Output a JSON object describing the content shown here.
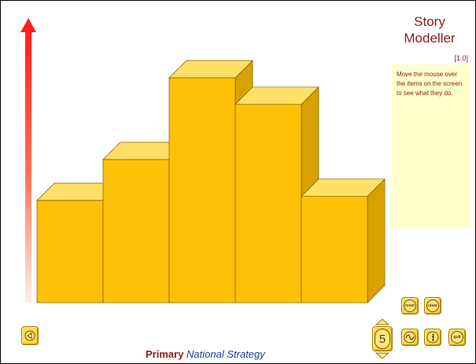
{
  "app": {
    "title_line1": "Story",
    "title_line2": "Modeller",
    "version": "[1.0]",
    "help_text": "Move the mouse over the items on the screen to see what they do."
  },
  "chart_data": {
    "type": "bar",
    "style": "3d",
    "categories": [
      "",
      "",
      "",
      "",
      ""
    ],
    "values": [
      5,
      7,
      11,
      9.7,
      5.2
    ],
    "ylim": [
      0,
      13
    ],
    "xlabel": "",
    "ylabel": "",
    "grid": false,
    "legend": "none",
    "bar_color": "#ffc107",
    "bar_top_color": "#ffe066",
    "bar_side_color": "#d9a100",
    "axis_arrow_color": "#ff1e1e"
  },
  "controls": {
    "reset_label": "reset",
    "clear_label": "clear",
    "quit_label": "quit",
    "count_value": "5",
    "accent_color": "#ffd54a"
  },
  "footer": {
    "primary": "Primary",
    "strategy": "National Strategy"
  }
}
